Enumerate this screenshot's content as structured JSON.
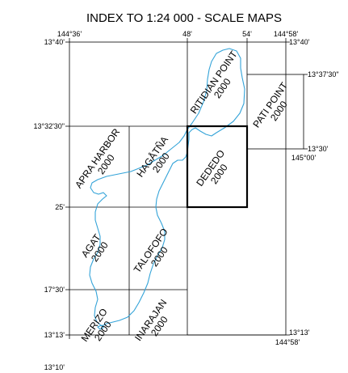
{
  "title": "INDEX TO 1:24 000 - SCALE MAPS",
  "colors": {
    "coastline": "#33a3d8",
    "grid": "#000000",
    "background": "#ffffff"
  },
  "coordinates": {
    "top_left_lon": "144°36'",
    "top_mid_lon": "48'",
    "top_right_lon_54": "54'",
    "top_right_lon": "144°58'",
    "top_left_lat": "13°40'",
    "top_right_lat": "13°40'",
    "pati_top_lat": "13°37'30\"",
    "left_lat_3230": "13°32'30\"",
    "pati_bottom_lat": "13°30'",
    "pati_bottom_lon": "145°00'",
    "left_lat_25": "25'",
    "left_lat_1730": "17°30'",
    "left_lat_1313": "13°13'",
    "right_lat_1313": "13°13'",
    "right_lon_bottom": "144°58'",
    "bottom_lat": "13°10'"
  },
  "quadrangles": [
    {
      "name": "RITIDIAN POINT",
      "year": "2000",
      "highlighted": false
    },
    {
      "name": "PATI POINT",
      "year": "2000",
      "highlighted": false
    },
    {
      "name": "APRA HARBOR",
      "year": "2000",
      "highlighted": false
    },
    {
      "name": "HAGÅTÑA",
      "year": "2000",
      "highlighted": false
    },
    {
      "name": "DEDEDO",
      "year": "2000",
      "highlighted": true
    },
    {
      "name": "AGAT",
      "year": "2000",
      "highlighted": false
    },
    {
      "name": "TALOFOFO",
      "year": "2000",
      "highlighted": false
    },
    {
      "name": "MERIZO",
      "year": "2000",
      "highlighted": false
    },
    {
      "name": "INARAJAN",
      "year": "2000",
      "highlighted": false
    }
  ]
}
